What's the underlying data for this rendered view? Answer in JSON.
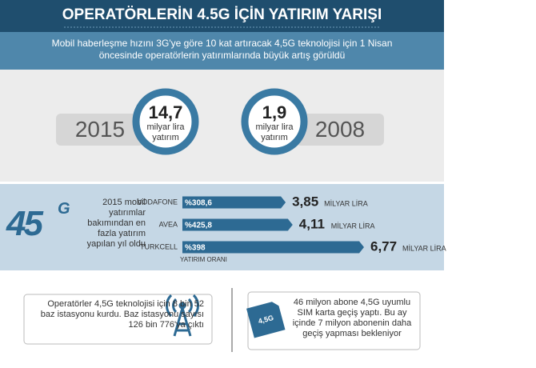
{
  "header": {
    "title": "OPERATÖRLERİN 4.5G İÇİN YATIRIM YARIŞI",
    "subtitle": "Mobil haberleşme hızını 3G'ye göre 10 kat artıracak 4,5G teknolojisi için 1 Nisan öncesinde operatörlerin yatırımlarında büyük artış görüldü"
  },
  "comparison": [
    {
      "year": "2015",
      "amount": "14,7",
      "unit": "milyar lira",
      "label": "yatırım"
    },
    {
      "year": "2008",
      "amount": "1,9",
      "unit": "milyar lira",
      "label": "yatırım"
    }
  ],
  "logo": {
    "main": "45",
    "sup": "G"
  },
  "chart_data": {
    "type": "bar",
    "orientation": "horizontal",
    "intro": "2015 mobil yatırımlar bakımından en fazla yatırım yapılan yıl oldu",
    "categories": [
      "VODAFONE",
      "AVEA",
      "TURKCELL"
    ],
    "values": [
      3.85,
      4.11,
      6.77
    ],
    "value_labels": [
      "3,85",
      "4,11",
      "6,77"
    ],
    "unit": "MİLYAR LİRA",
    "rates": [
      "%308,6",
      "%425,8",
      "%398"
    ],
    "rate_label": "YATIRIM ORANI",
    "color": "#2d6a93"
  },
  "notes": [
    {
      "text": "Operatörler 4,5G teknolojisi için 8 bin 52 baz istasyonu kurdu. Baz istasyonu sayısı 126 bin 776'ya çıktı"
    },
    {
      "text": "46 milyon abone 4,5G uyumlu SIM karta geçiş yaptı. Bu ay içinde 7 milyon abonenin daha geçiş yapması bekleniyor",
      "icon_label": "4,5G"
    }
  ]
}
